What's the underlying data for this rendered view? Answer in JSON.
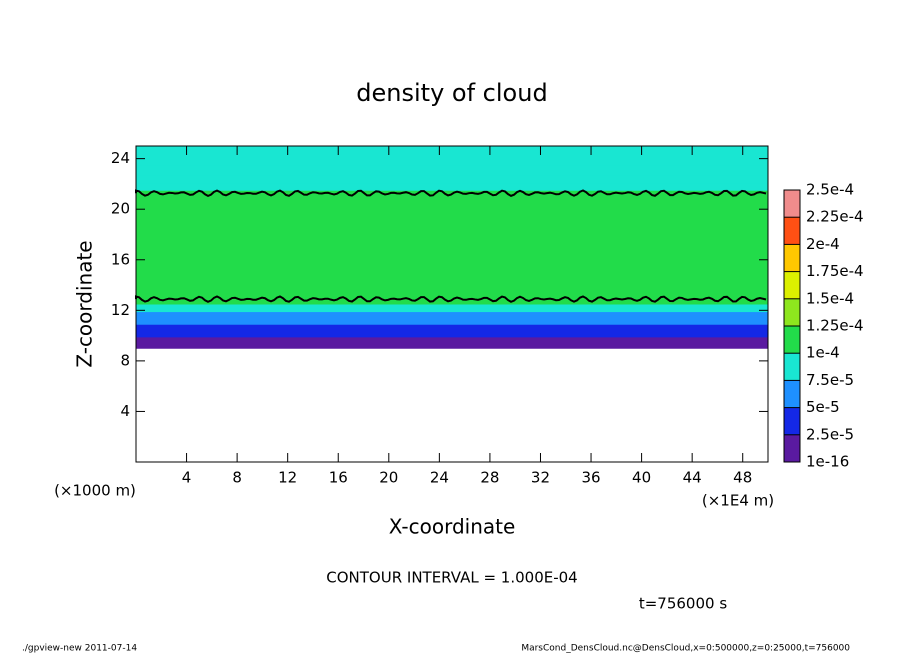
{
  "chart_data": {
    "type": "heatmap",
    "title": "density of cloud",
    "x_label": "X-coordinate",
    "y_label": "Z-coordinate",
    "y_unit": "(×1000 m)",
    "x_unit": "(×1E4 m)",
    "contour_text": "CONTOUR INTERVAL = 1.000E-04",
    "time_text": "t=756000 s",
    "footer_left": "./gpview-new  2011-07-14",
    "footer_right": "MarsCond_DensCloud.nc@DensCloud,x=0:500000,z=0:25000,t=756000",
    "xlim": [
      0,
      50
    ],
    "xticks": [
      4,
      8,
      12,
      16,
      20,
      24,
      28,
      32,
      36,
      40,
      44,
      48
    ],
    "ylim": [
      0,
      25
    ],
    "yticks": [
      4,
      8,
      12,
      16,
      20,
      24
    ],
    "z_edges": [
      9,
      9.4,
      9.9,
      10.4,
      10.9,
      11.4,
      11.9,
      12.5,
      13.5,
      15,
      17,
      19,
      20.5,
      21.5,
      22.1,
      22.7,
      23.5,
      25
    ],
    "values": [
      8e-06,
      1.8e-05,
      3e-05,
      4.3e-05,
      5.6e-05,
      7e-05,
      8.8e-05,
      0.000102,
      0.000107,
      0.00011,
      0.00011,
      0.000108,
      0.000102,
      9.6e-05,
      9e-05,
      8.4e-05,
      8e-05
    ],
    "colorbar_ticks": [
      {
        "value": 1e-16,
        "label": "1e-16"
      },
      {
        "value": 2.5e-05,
        "label": "2.5e-5"
      },
      {
        "value": 5e-05,
        "label": "5e-5"
      },
      {
        "value": 7.5e-05,
        "label": "7.5e-5"
      },
      {
        "value": 0.0001,
        "label": "1e-4"
      },
      {
        "value": 0.000125,
        "label": "1.25e-4"
      },
      {
        "value": 0.00015,
        "label": "1.5e-4"
      },
      {
        "value": 0.000175,
        "label": "1.75e-4"
      },
      {
        "value": 0.0002,
        "label": "2e-4"
      },
      {
        "value": 0.000225,
        "label": "2.25e-4"
      },
      {
        "value": 0.00025,
        "label": "2.5e-4"
      }
    ],
    "colors": [
      "#5a1aa0",
      "#1428e6",
      "#1e90ff",
      "#19e6d2",
      "#22dc4a",
      "#8ee61e",
      "#dcf000",
      "#ffc800",
      "#ff5014",
      "#f08c8c"
    ]
  }
}
